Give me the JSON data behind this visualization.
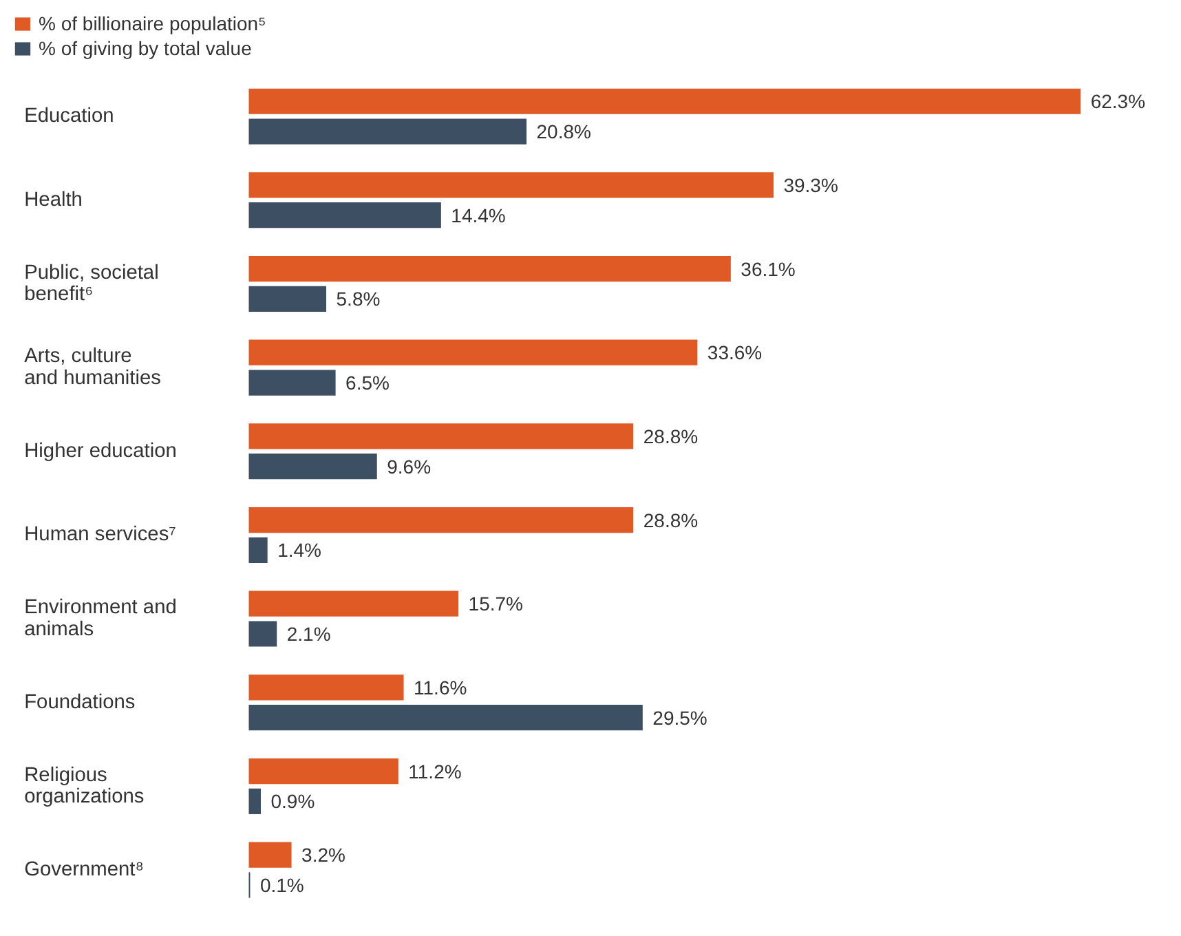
{
  "chart_data": {
    "type": "bar",
    "orientation": "horizontal",
    "legend": "top left",
    "data_labels": true,
    "categories": [
      "Education",
      "Health",
      "Public, societal benefit⁶",
      "Arts, culture and humanities",
      "Higher education",
      "Human services⁷",
      "Environment and animals",
      "Foundations",
      "Religious organizations",
      "Government⁸"
    ],
    "series": [
      {
        "name": "% of billionaire population⁵",
        "color": "#e05a26",
        "values": [
          62.3,
          39.3,
          36.1,
          33.6,
          28.8,
          28.8,
          15.7,
          11.6,
          11.2,
          3.2
        ],
        "value_labels": [
          "62.3%",
          "39.3%",
          "36.1%",
          "33.6%",
          "28.8%",
          "28.8%",
          "15.7%",
          "11.6%",
          "11.2%",
          "3.2%"
        ]
      },
      {
        "name": "% of giving by total value",
        "color": "#3d4f63",
        "values": [
          20.8,
          14.4,
          5.8,
          6.5,
          9.6,
          1.4,
          2.1,
          29.5,
          0.9,
          0.1
        ],
        "value_labels": [
          "20.8%",
          "14.4%",
          "5.8%",
          "6.5%",
          "9.6%",
          "1.4%",
          "2.1%",
          "29.5%",
          "0.9%",
          "0.1%"
        ]
      }
    ]
  }
}
